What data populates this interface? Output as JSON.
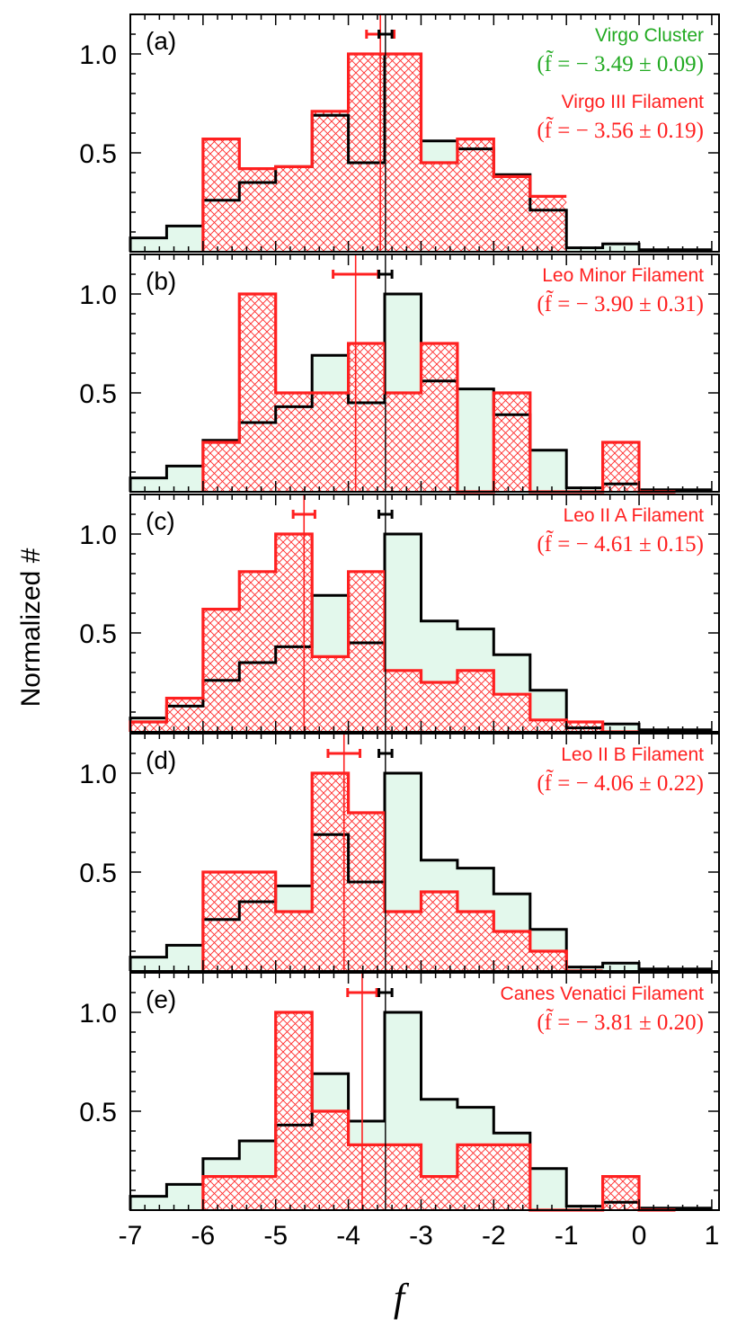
{
  "chart_data": {
    "type": "histogram-step",
    "xlabel": "f",
    "ylabel": "Normalized #",
    "xlim": [
      -7,
      1.1
    ],
    "ylim": [
      0,
      1.2
    ],
    "bin_width": 0.5,
    "x_ticks": [
      "-7",
      "-6",
      "-5",
      "-4",
      "-3",
      "-2",
      "-1",
      "0",
      "1"
    ],
    "x_tick_values": [
      -7,
      -6,
      -5,
      -4,
      -3,
      -2,
      -1,
      0,
      1
    ],
    "y_ticks": [
      "0.5",
      "1.0"
    ],
    "y_tick_values": [
      0.5,
      1.0
    ],
    "colors": {
      "cluster_line": "#000000",
      "cluster_fill": "#e3f8ec",
      "filament": "#ff2020",
      "cluster_label": "#22aa22"
    },
    "cluster": {
      "name": "Virgo Cluster",
      "value_label": "(f̃ = − 3.49 ± 0.09)",
      "median": -3.49,
      "err": 0.09,
      "bin_starts": [
        -7,
        -6.5,
        -6,
        -5.5,
        -5,
        -4.5,
        -4,
        -3.5,
        -3,
        -2.5,
        -2,
        -1.5,
        -1,
        -0.5,
        0,
        0.5
      ],
      "values": [
        0.07,
        0.13,
        0.26,
        0.35,
        0.43,
        0.69,
        0.45,
        1.0,
        0.56,
        0.52,
        0.39,
        0.21,
        0.02,
        0.04,
        0.01,
        0.01
      ]
    },
    "panels": [
      {
        "label": "(a)",
        "filament": "Virgo III Filament",
        "value_label": "(f̃ = − 3.56 ± 0.19)",
        "median": -3.56,
        "err": 0.19,
        "bin_starts": [
          -6,
          -5.5,
          -5,
          -4.5,
          -4,
          -3.5,
          -3,
          -2.5,
          -2,
          -1.5
        ],
        "values": [
          0.57,
          0.42,
          0.43,
          0.71,
          1.0,
          1.0,
          0.45,
          0.57,
          0.38,
          0.28
        ]
      },
      {
        "label": "(b)",
        "filament": "Leo Minor Filament",
        "value_label": "(f̃ = − 3.90 ± 0.31)",
        "median": -3.9,
        "err": 0.31,
        "bin_starts": [
          -6,
          -5.5,
          -5,
          -4.5,
          -4,
          -3.5,
          -3,
          -2.5,
          -2,
          -1.5,
          -1,
          -0.5,
          0
        ],
        "values": [
          0.25,
          1.0,
          0.5,
          0.5,
          0.75,
          0.5,
          0.75,
          0.0,
          0.5,
          0.0,
          0.0,
          0.25,
          0.0
        ]
      },
      {
        "label": "(c)",
        "filament": "Leo II A Filament",
        "value_label": "(f̃ = − 4.61 ± 0.15)",
        "median": -4.61,
        "err": 0.15,
        "bin_starts": [
          -7,
          -6.5,
          -6,
          -5.5,
          -5,
          -4.5,
          -4,
          -3.5,
          -3,
          -2.5,
          -2,
          -1.5,
          -1,
          -0.5
        ],
        "values": [
          0.05,
          0.17,
          0.62,
          0.81,
          1.0,
          0.38,
          0.81,
          0.31,
          0.25,
          0.31,
          0.19,
          0.06,
          0.05,
          0.0
        ]
      },
      {
        "label": "(d)",
        "filament": "Leo II B Filament",
        "value_label": "(f̃ = − 4.06 ± 0.22)",
        "median": -4.06,
        "err": 0.22,
        "bin_starts": [
          -6,
          -5.5,
          -5,
          -4.5,
          -4,
          -3.5,
          -3,
          -2.5,
          -2,
          -1.5,
          -1
        ],
        "values": [
          0.5,
          0.5,
          0.3,
          1.0,
          0.8,
          0.3,
          0.4,
          0.3,
          0.2,
          0.1,
          0.0
        ]
      },
      {
        "label": "(e)",
        "filament": "Canes Venatici Filament",
        "value_label": "(f̃ = − 3.81 ± 0.20)",
        "median": -3.81,
        "err": 0.2,
        "bin_starts": [
          -6,
          -5.5,
          -5,
          -4.5,
          -4,
          -3.5,
          -3,
          -2.5,
          -2,
          -1.5,
          -1,
          -0.5,
          0
        ],
        "values": [
          0.17,
          0.17,
          1.0,
          0.5,
          0.33,
          0.33,
          0.17,
          0.33,
          0.33,
          0.0,
          0.0,
          0.17,
          0.0
        ]
      }
    ]
  }
}
